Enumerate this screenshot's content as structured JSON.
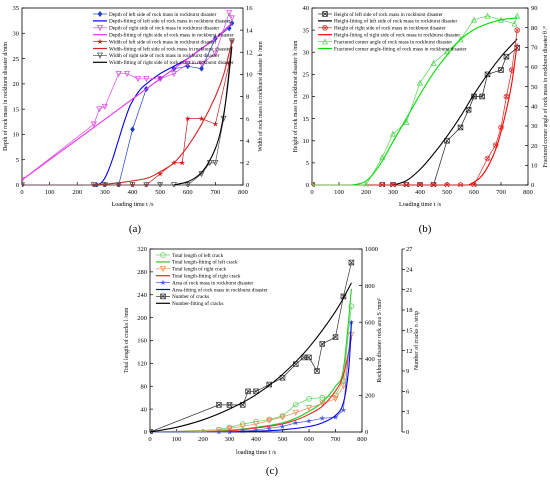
{
  "chart_data": [
    {
      "panel_label": "(a)",
      "type": "line",
      "xlabel": "Loading time t /s",
      "ylabel": "Depth of rock mass in rockburst disaster d/mm",
      "y2label": "Width of rock mass in rockburst disaster b /mm",
      "xlim": [
        0,
        800
      ],
      "ylim": [
        0,
        35
      ],
      "y2lim": [
        0,
        16
      ],
      "xticks": [
        0,
        100,
        200,
        300,
        400,
        500,
        600,
        700,
        800
      ],
      "yticks": [
        0,
        5,
        10,
        15,
        20,
        25,
        30,
        35
      ],
      "y2ticks": [
        0,
        2,
        4,
        6,
        8,
        10,
        12,
        14,
        16
      ],
      "legend_position": "top-right",
      "series": [
        {
          "name": "Depth of left side of rock mass in rockburst disaster",
          "axis": "y",
          "color": "#1f3fbf",
          "marker": "diamond",
          "style": "solid",
          "x": [
            0,
            270,
            300,
            350,
            400,
            450,
            500,
            550,
            600,
            650,
            700,
            750,
            760
          ],
          "y": [
            0,
            0,
            0,
            0,
            11,
            19,
            21,
            23,
            23.5,
            23,
            29,
            31,
            32
          ]
        },
        {
          "name": "Depth-fitting of left side of rock mass in rockburst disaster",
          "axis": "y",
          "color": "#0000ff",
          "marker": "none",
          "style": "fit",
          "x": [
            270,
            290,
            310,
            330,
            350,
            370,
            390,
            410,
            430,
            450,
            500,
            550,
            600,
            650,
            700,
            760
          ],
          "y": [
            0,
            0.6,
            2.5,
            5.5,
            9,
            12.5,
            15.5,
            17.5,
            19,
            20,
            22,
            23.5,
            25,
            27,
            29,
            32
          ]
        },
        {
          "name": "Depth of right side of rock mass in rockburst disaster",
          "axis": "y",
          "color": "#e04de0",
          "marker": "triangle-down",
          "style": "solid",
          "x": [
            0,
            260,
            280,
            300,
            350,
            380,
            420,
            450,
            500,
            550,
            600,
            650,
            700,
            750,
            760
          ],
          "y": [
            1,
            12,
            15,
            15.5,
            22,
            22,
            21,
            21,
            21,
            22,
            24,
            24,
            26,
            34,
            33
          ]
        },
        {
          "name": "Depth-fitting of right side of rock mass in rockburst disaster",
          "axis": "y",
          "color": "#ee33ee",
          "marker": "none",
          "style": "fit",
          "x": [
            0,
            100,
            200,
            300,
            400,
            500,
            600,
            700,
            760
          ],
          "y": [
            1,
            5,
            9,
            13,
            17,
            21,
            25,
            29,
            32
          ]
        },
        {
          "name": "Width of left side of rock mass in rockburst disaster",
          "axis": "y2",
          "color": "#d11a1a",
          "marker": "star",
          "style": "solid",
          "x": [
            0,
            260,
            300,
            350,
            400,
            450,
            500,
            550,
            580,
            600,
            650,
            700,
            750,
            760
          ],
          "y": [
            0,
            0,
            0,
            0,
            0,
            0,
            1,
            2,
            2,
            6,
            6,
            5.5,
            11,
            13
          ]
        },
        {
          "name": "Width-fitting of left side of rock mass in rockburst disaster",
          "axis": "y2",
          "color": "#e02020",
          "marker": "none",
          "style": "fit",
          "x": [
            260,
            350,
            450,
            500,
            550,
            600,
            650,
            700,
            730,
            760
          ],
          "y": [
            0,
            0.2,
            0.6,
            1.2,
            2,
            3.5,
            5.5,
            8,
            10,
            13
          ]
        },
        {
          "name": "Width of right side of rock mass in rockburst disaster",
          "axis": "y2",
          "color": "#555555",
          "marker": "triangle-down",
          "style": "solid",
          "x": [
            0,
            260,
            300,
            350,
            400,
            450,
            500,
            550,
            600,
            650,
            680,
            700,
            730,
            760
          ],
          "y": [
            0,
            0,
            0,
            0,
            0,
            0,
            0,
            0,
            0,
            1,
            2,
            2,
            6,
            13
          ]
        },
        {
          "name": "Width-fitting of right side of rock mass in rockburst disaster",
          "axis": "y2",
          "color": "#000000",
          "marker": "none",
          "style": "fit",
          "x": [
            550,
            600,
            640,
            670,
            700,
            720,
            740,
            760
          ],
          "y": [
            0,
            0.3,
            0.9,
            1.8,
            3.3,
            5,
            8,
            12.5
          ]
        }
      ]
    },
    {
      "panel_label": "(b)",
      "type": "line",
      "xlabel": "Loading time t /s",
      "ylabel": "Height of rock mass in rockburst disaster h /mm",
      "y2label": "Fractured corner angle of rock mass in rockburst disaster θ /°",
      "xlim": [
        0,
        800
      ],
      "ylim": [
        0,
        40
      ],
      "y2lim": [
        0,
        90
      ],
      "xticks": [
        0,
        100,
        200,
        300,
        400,
        500,
        600,
        700,
        800
      ],
      "yticks": [
        0,
        5,
        10,
        15,
        20,
        25,
        30,
        35,
        40
      ],
      "y2ticks": [
        0,
        10,
        20,
        30,
        40,
        50,
        60,
        70,
        80,
        90
      ],
      "legend_position": "top-left",
      "series": [
        {
          "name": "Height of left side of rock mass in rockburst disaster",
          "axis": "y",
          "color": "#222222",
          "marker": "x-square",
          "style": "solid",
          "x": [
            0,
            260,
            300,
            350,
            400,
            450,
            500,
            550,
            580,
            600,
            630,
            650,
            700,
            720,
            760
          ],
          "y": [
            0,
            0,
            0,
            0,
            0,
            0,
            10,
            13,
            17,
            20,
            20,
            25,
            26,
            29,
            31
          ]
        },
        {
          "name": "Height-fitting of left side of rock mass in rockburst disaster",
          "axis": "y",
          "color": "#000000",
          "marker": "none",
          "style": "fit",
          "x": [
            300,
            350,
            400,
            450,
            500,
            550,
            600,
            650,
            700,
            760
          ],
          "y": [
            0,
            1,
            3.5,
            7,
            11,
            15.5,
            20.5,
            25,
            29,
            33
          ]
        },
        {
          "name": "Height of right side of rock mass in rockburst disaster",
          "axis": "y",
          "color": "#e02020",
          "marker": "x-circle",
          "style": "solid",
          "x": [
            0,
            260,
            300,
            350,
            400,
            450,
            500,
            550,
            600,
            650,
            680,
            700,
            720,
            740,
            760
          ],
          "y": [
            0,
            0,
            0,
            0,
            0,
            0,
            0,
            0,
            0,
            6,
            9,
            13,
            20,
            26,
            35
          ]
        },
        {
          "name": "Height-fitting of right side of rock mass in rockburst disaster",
          "axis": "y",
          "color": "#ff0000",
          "marker": "none",
          "style": "fit",
          "x": [
            580,
            620,
            650,
            680,
            700,
            720,
            740,
            760
          ],
          "y": [
            0,
            1.5,
            4,
            8,
            12,
            17,
            23,
            32
          ]
        },
        {
          "name": "Fractured corner angle of rock mass in rockburst disaster",
          "axis": "y2",
          "color": "#5ad55a",
          "marker": "triangle-up",
          "style": "solid",
          "x": [
            0,
            200,
            260,
            300,
            350,
            400,
            450,
            500,
            550,
            600,
            650,
            700,
            750,
            760
          ],
          "y": [
            0,
            0,
            14,
            26,
            32,
            52,
            62,
            68,
            74,
            84,
            86,
            84,
            82,
            86
          ]
        },
        {
          "name": "Fractured corner angle-fitting of rock mass in rockburst disaster",
          "axis": "y2",
          "color": "#00dd00",
          "marker": "none",
          "style": "fit",
          "x": [
            150,
            200,
            250,
            300,
            350,
            400,
            450,
            500,
            550,
            600,
            650,
            700,
            760
          ],
          "y": [
            0,
            2,
            10,
            22,
            34,
            46,
            57,
            66,
            74,
            79,
            82,
            84,
            85
          ]
        }
      ]
    },
    {
      "panel_label": "(c)",
      "type": "line",
      "xlabel": "loading time t /s",
      "ylabel": "Total length of cracks l /mm",
      "y2label": "Rockburst disaster rock area S /mm²",
      "y3label": "Number of cracks n /strip",
      "xlim": [
        0,
        800
      ],
      "ylim": [
        0,
        320
      ],
      "y2lim": [
        0,
        1000
      ],
      "y3lim": [
        0,
        27
      ],
      "xticks": [
        0,
        100,
        200,
        300,
        400,
        500,
        600,
        700,
        800
      ],
      "yticks": [
        0,
        40,
        80,
        120,
        160,
        200,
        240,
        280,
        320
      ],
      "y2ticks": [
        0,
        200,
        400,
        600,
        800,
        1000
      ],
      "y3ticks": [
        0,
        3,
        6,
        9,
        12,
        15,
        18,
        21,
        24,
        27
      ],
      "legend_position": "top-left",
      "series": [
        {
          "name": "Total length of left crack",
          "axis": "y",
          "color": "#5ad55a",
          "marker": "circle",
          "style": "solid",
          "x": [
            0,
            260,
            300,
            350,
            400,
            450,
            500,
            550,
            600,
            650,
            700,
            730,
            760
          ],
          "y": [
            0,
            4,
            8,
            14,
            18,
            22,
            28,
            48,
            58,
            60,
            64,
            90,
            220
          ]
        },
        {
          "name": "Total length-fitting of left crack",
          "axis": "y",
          "color": "#22cc22",
          "marker": "none",
          "style": "fit",
          "x": [
            200,
            300,
            400,
            500,
            550,
            600,
            650,
            700,
            730,
            760
          ],
          "y": [
            0,
            3,
            8,
            16,
            24,
            36,
            52,
            80,
            110,
            250
          ]
        },
        {
          "name": "Total length of right crack",
          "axis": "y",
          "color": "#f08c5a",
          "marker": "triangle-down",
          "style": "solid",
          "x": [
            0,
            260,
            300,
            350,
            400,
            450,
            500,
            550,
            600,
            650,
            700,
            730,
            760
          ],
          "y": [
            0,
            3,
            6,
            10,
            14,
            20,
            26,
            34,
            42,
            50,
            58,
            80,
            170
          ]
        },
        {
          "name": "Total length-fitting of right crack",
          "axis": "y",
          "color": "#ff2020",
          "marker": "none",
          "style": "fit",
          "x": [
            200,
            300,
            400,
            500,
            550,
            600,
            650,
            700,
            730,
            760
          ],
          "y": [
            0,
            2,
            7,
            14,
            21,
            31,
            45,
            72,
            100,
            165
          ]
        },
        {
          "name": "Area of rock mass in rockburst disaster",
          "axis": "y2",
          "color": "#4a5ad5",
          "marker": "star",
          "style": "solid",
          "x": [
            0,
            260,
            300,
            350,
            400,
            450,
            500,
            550,
            600,
            650,
            700,
            730,
            760
          ],
          "y": [
            0,
            0,
            0,
            5,
            10,
            20,
            30,
            50,
            60,
            75,
            80,
            120,
            600
          ]
        },
        {
          "name": "Area-fitting of rock mass in rockburst disaster",
          "axis": "y2",
          "color": "#0000ee",
          "marker": "none",
          "style": "fit",
          "x": [
            300,
            400,
            500,
            600,
            650,
            700,
            730,
            750,
            760
          ],
          "y": [
            0,
            4,
            12,
            30,
            50,
            90,
            160,
            350,
            600
          ]
        },
        {
          "name": "Number of cracks",
          "axis": "y3",
          "color": "#333333",
          "marker": "x-square",
          "style": "solid",
          "x": [
            0,
            260,
            300,
            350,
            370,
            400,
            450,
            500,
            550,
            580,
            600,
            630,
            650,
            700,
            730,
            760
          ],
          "y": [
            0,
            4,
            4,
            4,
            6,
            6,
            7,
            8,
            10,
            11,
            11,
            9,
            13,
            14,
            20,
            25
          ]
        },
        {
          "name": "Number-fitting of cracks",
          "axis": "y3",
          "color": "#000000",
          "marker": "none",
          "style": "fit",
          "x": [
            0,
            100,
            200,
            300,
            400,
            500,
            600,
            700,
            760
          ],
          "y": [
            0,
            0.7,
            1.8,
            3.4,
            5.5,
            8.5,
            12.5,
            17.8,
            22
          ]
        }
      ]
    }
  ]
}
